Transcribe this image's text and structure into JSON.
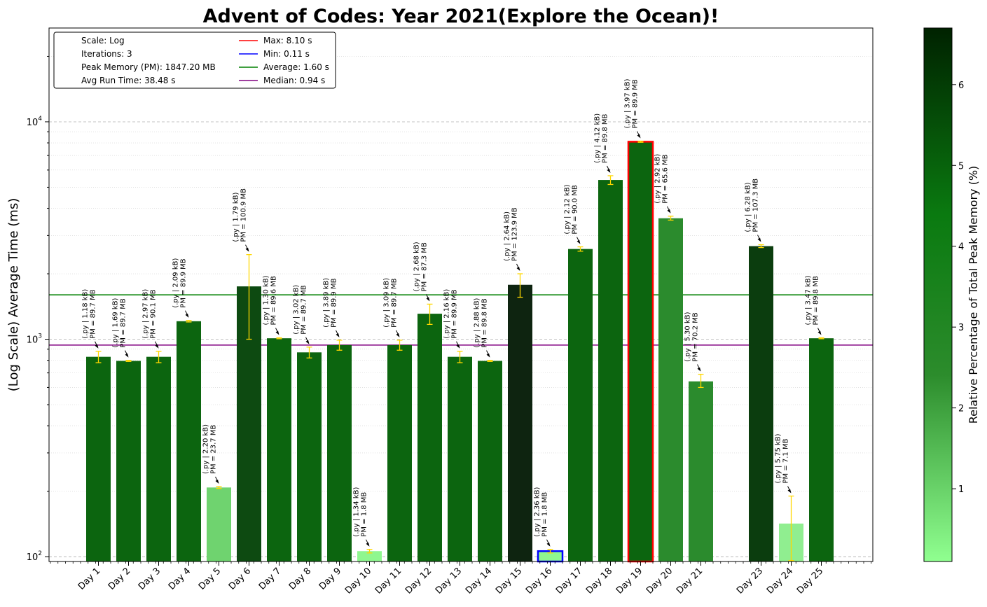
{
  "chart_data": {
    "type": "bar",
    "title": "Advent of Codes: Year 2021(Explore the Ocean)!",
    "xlabel": "",
    "ylabel": "(Log Scale) Average Time (ms)",
    "yscale": "log",
    "ylim": [
      95,
      27000
    ],
    "y_ticks": [
      {
        "value": 100,
        "base": "10",
        "exp": "2"
      },
      {
        "value": 1000,
        "base": "10",
        "exp": "3"
      },
      {
        "value": 10000,
        "base": "10",
        "exp": "4"
      }
    ],
    "grid": "horizontal dashed (major) and dotted (minor)",
    "legend_position": "upper-left",
    "legend": {
      "info": [
        "Scale: Log",
        "Iterations: 3",
        "Peak Memory (PM): 1847.20 MB",
        "Avg Run Time: 38.48 s"
      ],
      "lines": [
        {
          "label": "Max: 8.10 s",
          "color": "#ff0000",
          "value": 8100
        },
        {
          "label": "Min: 0.11 s",
          "color": "#0000ff",
          "value": 106
        },
        {
          "label": "Average: 1.60 s",
          "color": "#008000",
          "value": 1600
        },
        {
          "label": "Median: 0.94 s",
          "color": "#800080",
          "value": 940
        }
      ]
    },
    "colorbar": {
      "label": "Relative Percentage of Total Peak Memory (%)",
      "range": [
        0.1,
        6.7
      ],
      "ticks": [
        "1",
        "2",
        "3",
        "4",
        "5",
        "6"
      ],
      "tick_values": [
        1,
        2,
        3,
        4,
        5,
        6
      ],
      "color_low": "#90ff90",
      "color_mid": "#0a7a10",
      "color_high": "#002200"
    },
    "categories": [
      "Day 1",
      "Day 2",
      "Day 3",
      "Day 4",
      "Day 5",
      "Day 6",
      "Day 7",
      "Day 8",
      "Day 9",
      "Day 10",
      "Day 11",
      "Day 12",
      "Day 13",
      "Day 14",
      "Day 15",
      "Day 16",
      "Day 17",
      "Day 18",
      "Day 19",
      "Day 20",
      "Day 21",
      "",
      "Day 23",
      "Day 24",
      "Day 25"
    ],
    "bars": [
      {
        "day": "Day 1",
        "value": 830,
        "err_low": 780,
        "err_high": 880,
        "size": "(.py | 1.18 kB)",
        "pm": "PM = 89.7 MB",
        "pct": 4.9,
        "color": "#0c650f"
      },
      {
        "day": "Day 2",
        "value": 795,
        "err_low": 790,
        "err_high": 800,
        "size": "(.py | 1.69 kB)",
        "pm": "PM = 89.7 MB",
        "pct": 4.9,
        "color": "#0c650f"
      },
      {
        "day": "Day 3",
        "value": 830,
        "err_low": 780,
        "err_high": 880,
        "size": "(.py | 2.97 kB)",
        "pm": "PM = 90.1 MB",
        "pct": 4.9,
        "color": "#0c650f"
      },
      {
        "day": "Day 4",
        "value": 1210,
        "err_low": 1200,
        "err_high": 1220,
        "size": "(.py | 2.09 kB)",
        "pm": "PM = 89.9 MB",
        "pct": 4.9,
        "color": "#0c650f"
      },
      {
        "day": "Day 5",
        "value": 208,
        "err_low": 206,
        "err_high": 210,
        "size": "(.py | 2.20 kB)",
        "pm": "PM = 23.7 MB",
        "pct": 1.3,
        "color": "#6fd36f"
      },
      {
        "day": "Day 6",
        "value": 1750,
        "err_low": 1000,
        "err_high": 2450,
        "size": "(.py | 1.79 kB)",
        "pm": "PM = 100.9 MB",
        "pct": 5.5,
        "color": "#0d4a11"
      },
      {
        "day": "Day 7",
        "value": 1010,
        "err_low": 1005,
        "err_high": 1015,
        "size": "(.py | 1.30 kB)",
        "pm": "PM = 89.6 MB",
        "pct": 4.9,
        "color": "#0c650f"
      },
      {
        "day": "Day 8",
        "value": 870,
        "err_low": 820,
        "err_high": 920,
        "size": "(.py | 3.02 kB)",
        "pm": "PM = 89.7 MB",
        "pct": 4.9,
        "color": "#0c650f"
      },
      {
        "day": "Day 9",
        "value": 940,
        "err_low": 890,
        "err_high": 990,
        "size": "(.py | 3.89 kB)",
        "pm": "PM = 89.9 MB",
        "pct": 4.9,
        "color": "#0c650f"
      },
      {
        "day": "Day 10",
        "value": 106,
        "err_low": 104,
        "err_high": 108,
        "size": "(.py | 1.34 kB)",
        "pm": "PM = 1.8 MB",
        "pct": 0.1,
        "color": "#8ff78f"
      },
      {
        "day": "Day 11",
        "value": 940,
        "err_low": 890,
        "err_high": 990,
        "size": "(.py | 3.09 kB)",
        "pm": "PM = 89.7 MB",
        "pct": 4.9,
        "color": "#0c650f"
      },
      {
        "day": "Day 12",
        "value": 1310,
        "err_low": 1170,
        "err_high": 1450,
        "size": "(.py | 2.68 kB)",
        "pm": "PM = 87.3 MB",
        "pct": 4.7,
        "color": "#0c650f"
      },
      {
        "day": "Day 13",
        "value": 830,
        "err_low": 780,
        "err_high": 880,
        "size": "(.py | 2.16 kB)",
        "pm": "PM = 89.9 MB",
        "pct": 4.9,
        "color": "#0c650f"
      },
      {
        "day": "Day 14",
        "value": 795,
        "err_low": 790,
        "err_high": 800,
        "size": "(.py | 2.88 kB)",
        "pm": "PM = 89.8 MB",
        "pct": 4.9,
        "color": "#0c650f"
      },
      {
        "day": "Day 15",
        "value": 1780,
        "err_low": 1560,
        "err_high": 2000,
        "size": "(.py | 2.64 kB)",
        "pm": "PM = 123.9 MB",
        "pct": 6.7,
        "color": "#0e2410"
      },
      {
        "day": "Day 16",
        "value": 106,
        "err_low": 104,
        "err_high": 108,
        "size": "(.py | 2.36 kB)",
        "pm": "PM = 1.8 MB",
        "pct": 0.1,
        "color": "#8ff78f",
        "outline": "#0000ff"
      },
      {
        "day": "Day 17",
        "value": 2600,
        "err_low": 2540,
        "err_high": 2660,
        "size": "(.py | 2.12 kB)",
        "pm": "PM = 90.0 MB",
        "pct": 4.9,
        "color": "#0c650f"
      },
      {
        "day": "Day 18",
        "value": 5400,
        "err_low": 5150,
        "err_high": 5650,
        "size": "(.py | 4.12 kB)",
        "pm": "PM = 89.8 MB",
        "pct": 4.9,
        "color": "#0c650f"
      },
      {
        "day": "Day 19",
        "value": 8100,
        "err_low": 8050,
        "err_high": 8150,
        "size": "(.py | 3.97 kB)",
        "pm": "PM = 89.9 MB",
        "pct": 4.9,
        "color": "#0c650f",
        "outline": "#ff0000"
      },
      {
        "day": "Day 20",
        "value": 3600,
        "err_low": 3530,
        "err_high": 3680,
        "size": "(.py | 2.92 kB)",
        "pm": "PM = 65.6 MB",
        "pct": 3.6,
        "color": "#2b8b2d"
      },
      {
        "day": "Day 21",
        "value": 640,
        "err_low": 600,
        "err_high": 690,
        "size": "(.py | 5.30 kB)",
        "pm": "PM = 70.2 MB",
        "pct": 3.8,
        "color": "#2b8b2d"
      },
      {
        "day": "Day 23",
        "value": 2680,
        "err_low": 2640,
        "err_high": 2720,
        "size": "(.py | 6.28 kB)",
        "pm": "PM = 107.3 MB",
        "pct": 5.8,
        "color": "#0b3d0e"
      },
      {
        "day": "Day 24",
        "value": 142,
        "err_low": 96,
        "err_high": 190,
        "size": "(.py | 5.75 kB)",
        "pm": "PM = 7.1 MB",
        "pct": 0.4,
        "color": "#90ee90"
      },
      {
        "day": "Day 25",
        "value": 1010,
        "err_low": 1005,
        "err_high": 1015,
        "size": "(.py | 3.47 kB)",
        "pm": "PM = 89.8 MB",
        "pct": 4.9,
        "color": "#0c650f"
      }
    ]
  }
}
